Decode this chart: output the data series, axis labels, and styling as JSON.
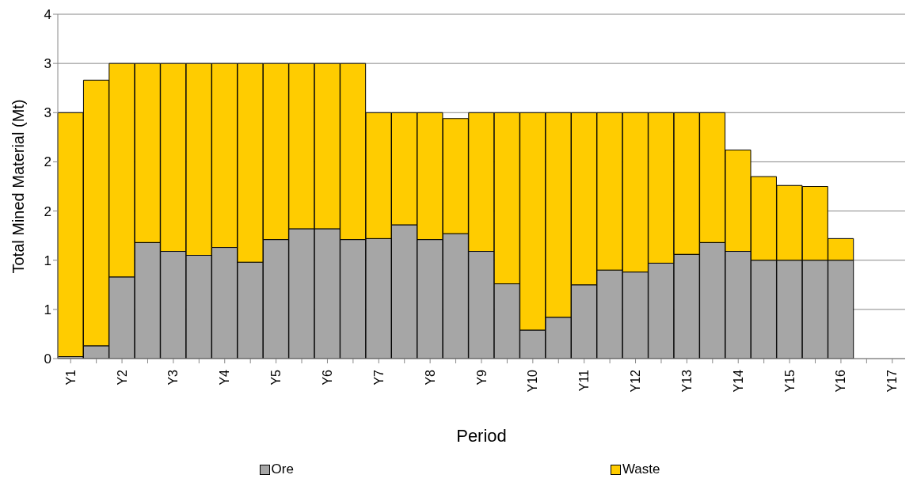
{
  "chart_data": {
    "type": "bar",
    "stacked": true,
    "xlabel": "Period",
    "ylabel": "Total Mined Material (Mt)",
    "categories": [
      "Y1",
      null,
      "Y2",
      null,
      "Y3",
      null,
      "Y4",
      null,
      "Y5",
      null,
      "Y6",
      null,
      "Y7",
      null,
      "Y8",
      null,
      "Y9",
      null,
      "Y10",
      null,
      "Y11",
      null,
      "Y12",
      null,
      "Y13",
      null,
      "Y14",
      null,
      "Y15",
      null,
      "Y16",
      null,
      "Y17"
    ],
    "series": [
      {
        "name": "Ore",
        "color": "#a6a6a6",
        "values": [
          0.02,
          0.13,
          0.83,
          1.18,
          1.09,
          1.05,
          1.13,
          0.98,
          1.21,
          1.32,
          1.32,
          1.21,
          1.22,
          1.36,
          1.21,
          1.27,
          1.09,
          0.76,
          0.29,
          0.42,
          0.75,
          0.9,
          0.88,
          0.97,
          1.06,
          1.18,
          1.09,
          1.0,
          1.0,
          1.0,
          1.0,
          null,
          null
        ]
      },
      {
        "name": "Waste",
        "color": "#ffcc00",
        "values": [
          2.48,
          2.7,
          2.17,
          1.82,
          1.91,
          1.95,
          1.87,
          2.02,
          1.79,
          1.68,
          1.68,
          1.79,
          1.28,
          1.14,
          1.29,
          1.17,
          1.41,
          1.74,
          2.21,
          2.08,
          1.75,
          1.6,
          1.62,
          1.53,
          1.44,
          1.32,
          1.03,
          0.85,
          0.76,
          0.75,
          0.22,
          null,
          null
        ]
      }
    ],
    "ylim": [
      0,
      3.5
    ],
    "yticks": [
      0,
      {
        "value": 0.5,
        "label": "1"
      },
      1,
      {
        "value": 1.5,
        "label": "2"
      },
      2,
      {
        "value": 2.5,
        "label": "3"
      },
      3,
      {
        "value": 3.5,
        "label": "4"
      }
    ],
    "grid": "y",
    "legend": "bottom"
  }
}
